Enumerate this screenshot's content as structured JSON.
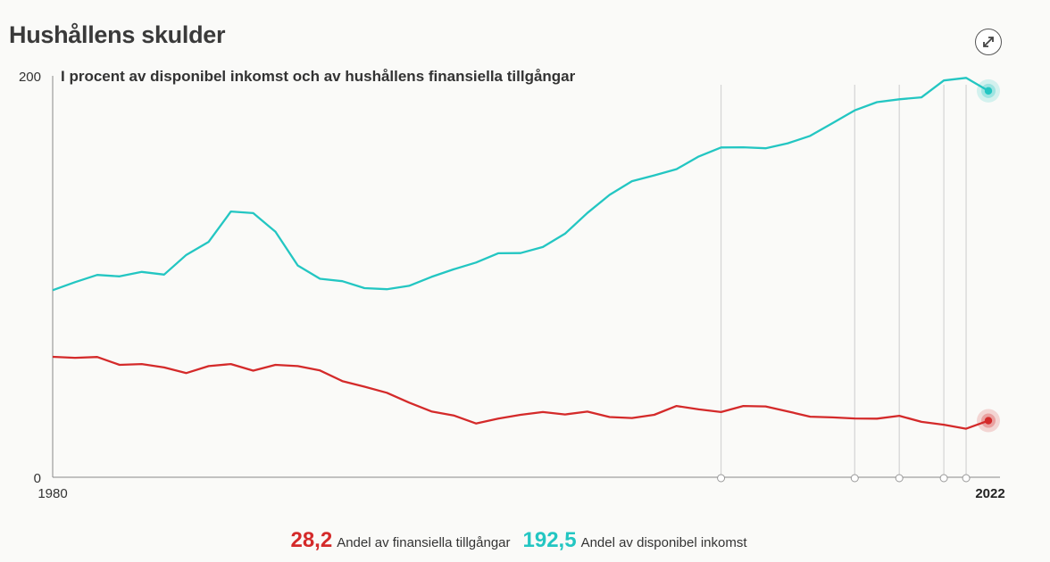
{
  "header": {
    "title": "Hushållens skulder",
    "subtitle": "I procent av disponibel inkomst och av hushållens finansiella tillgångar",
    "expand_icon": "expand-arrows-icon"
  },
  "legend": {
    "items": [
      {
        "value": "28,2",
        "label": "Andel av finansiella tillgångar",
        "color": "#d42a2a"
      },
      {
        "value": "192,5",
        "label": "Andel av disponibel inkomst",
        "color": "#23c6c2"
      }
    ]
  },
  "chart_data": {
    "type": "line",
    "title": "Hushållens skulder",
    "subtitle": "I procent av disponibel inkomst och av hushållens finansiella tillgångar",
    "x": [
      1980,
      1981,
      1982,
      1983,
      1984,
      1985,
      1986,
      1987,
      1988,
      1989,
      1990,
      1991,
      1992,
      1993,
      1994,
      1995,
      1996,
      1997,
      1998,
      1999,
      2000,
      2001,
      2002,
      2003,
      2004,
      2005,
      2006,
      2007,
      2008,
      2009,
      2010,
      2011,
      2012,
      2013,
      2014,
      2015,
      2016,
      2017,
      2018,
      2019,
      2020,
      2021,
      2022
    ],
    "xlim": [
      1980,
      2022
    ],
    "ylim": [
      0,
      200
    ],
    "y_ticks": [
      0,
      200
    ],
    "x_tick_labels": [
      "1980",
      "2022"
    ],
    "grid": "vertical markers at selected years",
    "marker_years": [
      2010,
      2016,
      2018,
      2020,
      2021
    ],
    "series": [
      {
        "name": "Andel av disponibel inkomst",
        "color": "#23c6c2",
        "values": [
          93.2,
          97.2,
          100.8,
          100.1,
          102.3,
          101.0,
          110.8,
          117.3,
          132.4,
          131.6,
          122.3,
          105.5,
          98.9,
          97.7,
          94.2,
          93.7,
          95.4,
          99.8,
          103.6,
          107.0,
          111.6,
          111.7,
          114.7,
          121.4,
          131.7,
          140.7,
          147.5,
          150.4,
          153.5,
          159.8,
          164.3,
          164.4,
          163.9,
          166.4,
          170.1,
          176.4,
          182.8,
          186.9,
          188.3,
          189.3,
          197.7,
          199.0,
          192.5
        ]
      },
      {
        "name": "Andel av finansiella tillgångar",
        "color": "#d42a2a",
        "values": [
          60.0,
          59.5,
          59.9,
          56.0,
          56.4,
          54.7,
          51.9,
          55.4,
          56.4,
          53.1,
          56.0,
          55.4,
          53.2,
          47.9,
          45.1,
          42.1,
          37.2,
          32.8,
          30.8,
          26.8,
          29.2,
          31.1,
          32.5,
          31.3,
          32.7,
          30.0,
          29.5,
          31.1,
          35.5,
          33.8,
          32.5,
          35.5,
          35.3,
          32.8,
          30.2,
          29.8,
          29.3,
          29.2,
          30.6,
          27.6,
          26.2,
          24.2,
          28.2
        ]
      }
    ]
  }
}
